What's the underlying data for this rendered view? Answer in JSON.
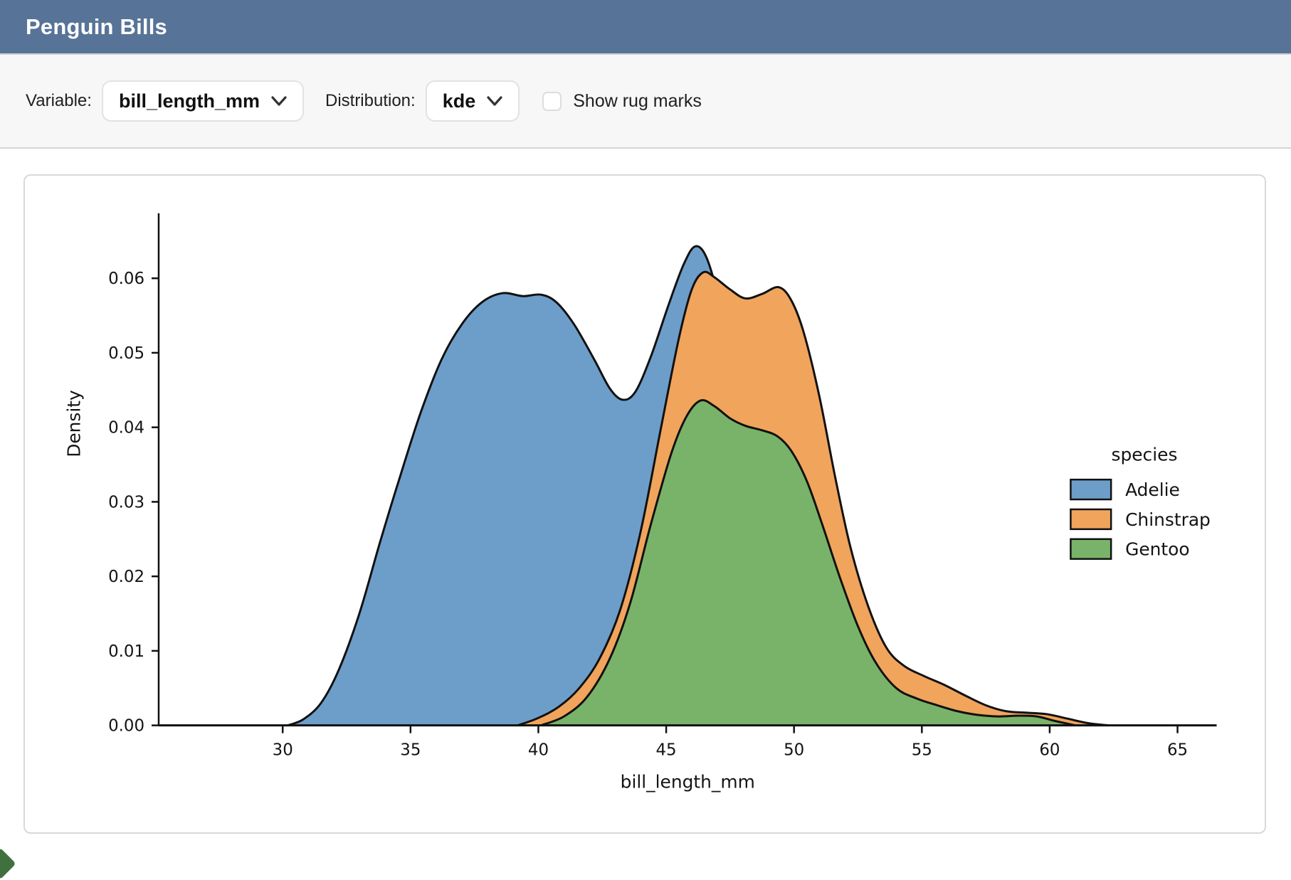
{
  "header": {
    "title": "Penguin Bills"
  },
  "toolbar": {
    "variable_label": "Variable:",
    "variable_value": "bill_length_mm",
    "distribution_label": "Distribution:",
    "distribution_value": "kde",
    "rug_label": "Show rug marks",
    "rug_checked": false
  },
  "colors": {
    "header_bg": "#577397",
    "adelie_fill": "#6D9ECA",
    "chinstrap_fill": "#F1A45C",
    "gentoo_fill": "#79B369",
    "curve_stroke": "#111111"
  },
  "chart_data": {
    "type": "area",
    "subtype": "kde-density",
    "title": "",
    "xlabel": "bill_length_mm",
    "ylabel": "Density",
    "xlim": [
      25.2,
      66.6
    ],
    "ylim": [
      0,
      0.0687
    ],
    "xticks": [
      30,
      35,
      40,
      45,
      50,
      55,
      60,
      65
    ],
    "yticks": [
      0.0,
      0.01,
      0.02,
      0.03,
      0.04,
      0.05,
      0.06
    ],
    "grid": false,
    "legend": {
      "title": "species",
      "position": "center-right",
      "frame": false
    },
    "series": [
      {
        "name": "Adelie",
        "color": "#6D9ECA",
        "points": [
          [
            30.2,
            0
          ],
          [
            30.8,
            0.0008
          ],
          [
            31.5,
            0.003
          ],
          [
            32.2,
            0.0075
          ],
          [
            33,
            0.015
          ],
          [
            33.8,
            0.0245
          ],
          [
            34.6,
            0.0335
          ],
          [
            35.4,
            0.042
          ],
          [
            36.2,
            0.049
          ],
          [
            37,
            0.0538
          ],
          [
            37.8,
            0.0568
          ],
          [
            38.6,
            0.058
          ],
          [
            39.4,
            0.0576
          ],
          [
            40.1,
            0.0578
          ],
          [
            40.7,
            0.0568
          ],
          [
            41.4,
            0.0538
          ],
          [
            42.2,
            0.049
          ],
          [
            42.8,
            0.0452
          ],
          [
            43.3,
            0.0437
          ],
          [
            43.8,
            0.0448
          ],
          [
            44.4,
            0.0495
          ],
          [
            45.1,
            0.0565
          ],
          [
            45.7,
            0.062
          ],
          [
            46.15,
            0.0643
          ],
          [
            46.6,
            0.0626
          ],
          [
            47.1,
            0.0565
          ],
          [
            47.7,
            0.047
          ],
          [
            48.4,
            0.034
          ],
          [
            49.1,
            0.0215
          ],
          [
            49.9,
            0.011
          ],
          [
            50.7,
            0.0045
          ],
          [
            51.5,
            0.0013
          ],
          [
            52.3,
            0
          ]
        ]
      },
      {
        "name": "Chinstrap",
        "color": "#F1A45C",
        "points": [
          [
            39.2,
            0
          ],
          [
            40,
            0.001
          ],
          [
            40.8,
            0.0025
          ],
          [
            41.6,
            0.005
          ],
          [
            42.4,
            0.009
          ],
          [
            43.2,
            0.0155
          ],
          [
            44,
            0.026
          ],
          [
            44.8,
            0.04
          ],
          [
            45.5,
            0.052
          ],
          [
            46,
            0.0585
          ],
          [
            46.45,
            0.0608
          ],
          [
            46.9,
            0.0601
          ],
          [
            47.5,
            0.0585
          ],
          [
            48.1,
            0.0573
          ],
          [
            48.75,
            0.0579
          ],
          [
            49.4,
            0.0588
          ],
          [
            49.9,
            0.057
          ],
          [
            50.4,
            0.0525
          ],
          [
            51,
            0.044
          ],
          [
            51.6,
            0.0335
          ],
          [
            52.2,
            0.024
          ],
          [
            52.9,
            0.016
          ],
          [
            53.6,
            0.0105
          ],
          [
            54.3,
            0.008
          ],
          [
            55.1,
            0.0066
          ],
          [
            55.9,
            0.0054
          ],
          [
            56.7,
            0.004
          ],
          [
            57.5,
            0.0027
          ],
          [
            58.3,
            0.0019
          ],
          [
            59.1,
            0.0017
          ],
          [
            59.9,
            0.0015
          ],
          [
            60.7,
            0.0009
          ],
          [
            61.5,
            0.0003
          ],
          [
            62.3,
            0
          ]
        ]
      },
      {
        "name": "Gentoo",
        "color": "#79B369",
        "points": [
          [
            40.1,
            0
          ],
          [
            41,
            0.0012
          ],
          [
            41.9,
            0.0038
          ],
          [
            42.8,
            0.009
          ],
          [
            43.6,
            0.0165
          ],
          [
            44.4,
            0.027
          ],
          [
            45.2,
            0.0365
          ],
          [
            45.8,
            0.0415
          ],
          [
            46.35,
            0.0436
          ],
          [
            46.9,
            0.0428
          ],
          [
            47.5,
            0.0412
          ],
          [
            48.1,
            0.0402
          ],
          [
            48.75,
            0.0396
          ],
          [
            49.35,
            0.0388
          ],
          [
            49.9,
            0.0368
          ],
          [
            50.5,
            0.0328
          ],
          [
            51.1,
            0.027
          ],
          [
            51.8,
            0.0198
          ],
          [
            52.5,
            0.0133
          ],
          [
            53.2,
            0.0084
          ],
          [
            54,
            0.005
          ],
          [
            54.8,
            0.0036
          ],
          [
            55.6,
            0.0027
          ],
          [
            56.4,
            0.0019
          ],
          [
            57.2,
            0.0014
          ],
          [
            58,
            0.0012
          ],
          [
            58.8,
            0.0013
          ],
          [
            59.5,
            0.0012
          ],
          [
            60.2,
            0.0006
          ],
          [
            61,
            0
          ]
        ]
      }
    ]
  }
}
